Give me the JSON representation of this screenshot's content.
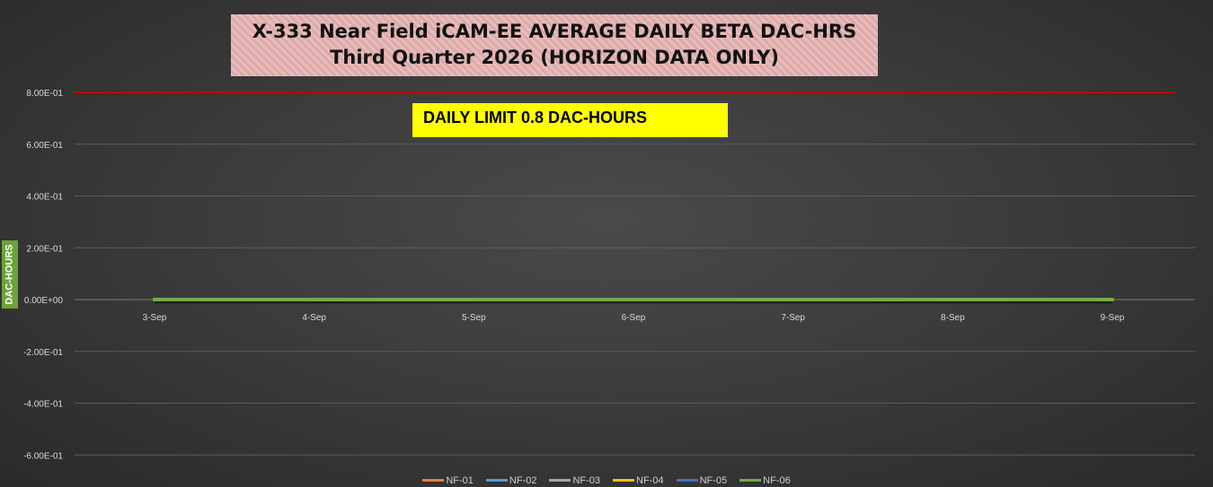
{
  "chart_data": {
    "type": "line",
    "title": "X-333 Near Field iCAM-EE AVERAGE DAILY BETA DAC-HRS",
    "subtitle": "Third Quarter 2026 (HORIZON DATA ONLY)",
    "annotation": "DAILY LIMIT 0.8 DAC-HOURS",
    "ylabel": "DAC-HOURS",
    "xlabel": "",
    "categories": [
      "3-Sep",
      "4-Sep",
      "5-Sep",
      "6-Sep",
      "7-Sep",
      "8-Sep",
      "9-Sep"
    ],
    "ylim": [
      -0.7,
      0.8
    ],
    "yticks": [
      {
        "value": 0.8,
        "label": "8.00E-01"
      },
      {
        "value": 0.6,
        "label": "6.00E-01"
      },
      {
        "value": 0.4,
        "label": "4.00E-01"
      },
      {
        "value": 0.2,
        "label": "2.00E-01"
      },
      {
        "value": 0.0,
        "label": "0.00E+00"
      },
      {
        "value": -0.2,
        "label": "-2.00E-01"
      },
      {
        "value": -0.4,
        "label": "-4.00E-01"
      },
      {
        "value": -0.6,
        "label": "-6.00E-01"
      }
    ],
    "limit_value": 0.8,
    "limit_color": "#c00000",
    "grid": true,
    "legend_position": "bottom",
    "series": [
      {
        "name": "NF-01",
        "color": "#ed7d31",
        "values": [
          0,
          0,
          0,
          0,
          0,
          0,
          0
        ]
      },
      {
        "name": "NF-02",
        "color": "#5b9bd5",
        "values": [
          0,
          0,
          0,
          0,
          0,
          0,
          0
        ]
      },
      {
        "name": "NF-03",
        "color": "#a5a5a5",
        "values": [
          0,
          0,
          0,
          0,
          0,
          0,
          0
        ]
      },
      {
        "name": "NF-04",
        "color": "#ffc000",
        "values": [
          0,
          0,
          0,
          0,
          0,
          0,
          0
        ]
      },
      {
        "name": "NF-05",
        "color": "#4472c4",
        "values": [
          0,
          0,
          0,
          0,
          0,
          0,
          0
        ]
      },
      {
        "name": "NF-06",
        "color": "#70ad47",
        "values": [
          0,
          0,
          0,
          0,
          0,
          0,
          0
        ]
      }
    ]
  }
}
